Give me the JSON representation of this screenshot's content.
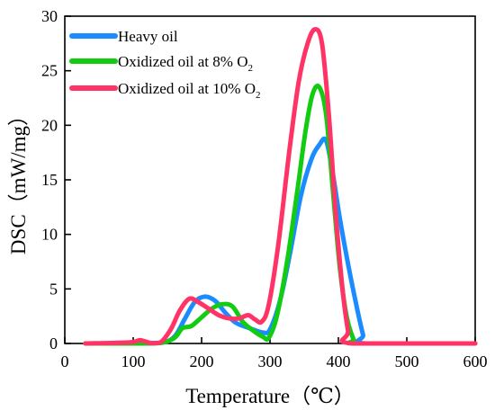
{
  "chart_data": {
    "type": "line",
    "title": "",
    "xlabel": "Temperature（℃）",
    "ylabel": "DSC（mW/mg）",
    "xlim": [
      0,
      600
    ],
    "ylim": [
      0,
      30
    ],
    "x_ticks": [
      0,
      100,
      200,
      300,
      400,
      500,
      600
    ],
    "y_ticks": [
      0,
      5,
      10,
      15,
      20,
      25,
      30
    ],
    "grid": false,
    "legend_position": "top-left",
    "series": [
      {
        "name": "Heavy oil",
        "name_sub": "",
        "color": "#1a8cff",
        "points": [
          [
            30,
            0
          ],
          [
            100,
            0
          ],
          [
            140,
            0.05
          ],
          [
            160,
            0.6
          ],
          [
            175,
            2.2
          ],
          [
            190,
            3.8
          ],
          [
            205,
            4.3
          ],
          [
            220,
            3.9
          ],
          [
            235,
            2.8
          ],
          [
            250,
            1.9
          ],
          [
            270,
            1.4
          ],
          [
            290,
            1.0
          ],
          [
            300,
            1.3
          ],
          [
            315,
            4.0
          ],
          [
            330,
            8.5
          ],
          [
            345,
            13.5
          ],
          [
            360,
            16.8
          ],
          [
            372,
            18.2
          ],
          [
            382,
            18.6
          ],
          [
            392,
            15.5
          ],
          [
            402,
            11.5
          ],
          [
            415,
            7.0
          ],
          [
            428,
            3.0
          ],
          [
            436,
            0.8
          ],
          [
            440,
            0
          ],
          [
            600,
            0
          ]
        ]
      },
      {
        "name": "Oxidized oil at 8% O",
        "name_sub": "2",
        "color": "#11cc11",
        "points": [
          [
            30,
            0
          ],
          [
            100,
            0
          ],
          [
            140,
            0.05
          ],
          [
            160,
            0.5
          ],
          [
            172,
            1.4
          ],
          [
            185,
            1.6
          ],
          [
            200,
            2.4
          ],
          [
            215,
            3.2
          ],
          [
            230,
            3.6
          ],
          [
            245,
            3.4
          ],
          [
            260,
            2.0
          ],
          [
            275,
            1.2
          ],
          [
            290,
            0.6
          ],
          [
            298,
            0.5
          ],
          [
            310,
            2.5
          ],
          [
            325,
            7.5
          ],
          [
            340,
            14.0
          ],
          [
            352,
            19.5
          ],
          [
            362,
            22.8
          ],
          [
            372,
            23.5
          ],
          [
            382,
            21.0
          ],
          [
            392,
            14.0
          ],
          [
            402,
            7.0
          ],
          [
            412,
            2.5
          ],
          [
            422,
            0.4
          ],
          [
            428,
            0
          ],
          [
            600,
            0
          ]
        ]
      },
      {
        "name": "Oxidized oil at 10% O",
        "name_sub": "2",
        "color": "#ff3366",
        "points": [
          [
            30,
            0
          ],
          [
            95,
            0.1
          ],
          [
            110,
            0.3
          ],
          [
            125,
            0.05
          ],
          [
            140,
            0.1
          ],
          [
            155,
            1.3
          ],
          [
            168,
            3.0
          ],
          [
            182,
            4.1
          ],
          [
            195,
            3.8
          ],
          [
            210,
            3.2
          ],
          [
            225,
            2.6
          ],
          [
            240,
            2.3
          ],
          [
            255,
            2.3
          ],
          [
            268,
            2.6
          ],
          [
            278,
            2.2
          ],
          [
            288,
            2.0
          ],
          [
            298,
            3.5
          ],
          [
            312,
            9.0
          ],
          [
            328,
            17.5
          ],
          [
            342,
            24.0
          ],
          [
            355,
            27.5
          ],
          [
            366,
            28.8
          ],
          [
            376,
            27.5
          ],
          [
            386,
            21.0
          ],
          [
            396,
            12.0
          ],
          [
            406,
            5.0
          ],
          [
            414,
            1.2
          ],
          [
            420,
            0
          ],
          [
            600,
            0
          ]
        ]
      }
    ]
  }
}
